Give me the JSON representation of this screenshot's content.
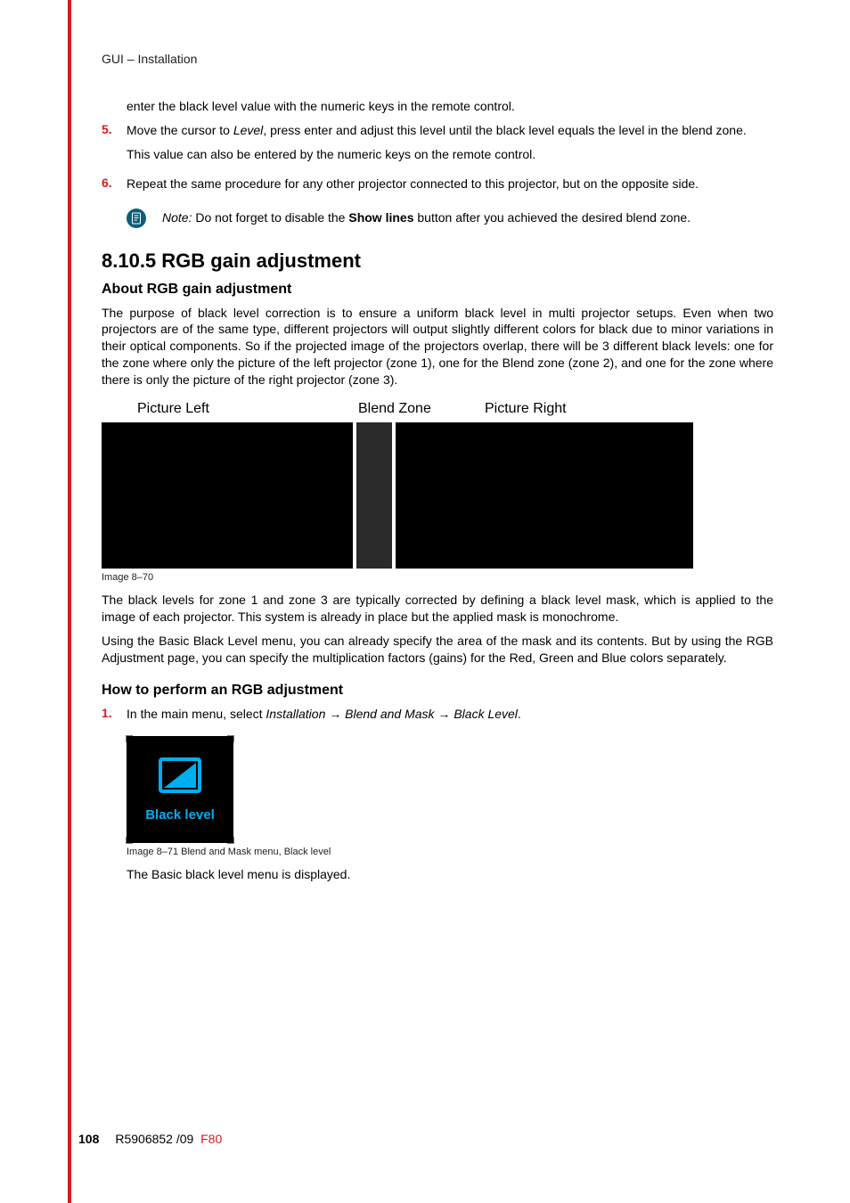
{
  "header": {
    "title": "GUI – Installation"
  },
  "intro_continuation": "enter the black level value with the numeric keys in the remote control.",
  "steps_top": [
    {
      "num": "5.",
      "lines": [
        {
          "parts": [
            {
              "t": "Move the cursor to "
            },
            {
              "t": "Level",
              "italic": true
            },
            {
              "t": ", press enter and adjust this level until the black level equals the level in the blend zone."
            }
          ]
        },
        {
          "parts": [
            {
              "t": "This value can also be entered by the numeric keys on the remote control."
            }
          ]
        }
      ]
    },
    {
      "num": "6.",
      "lines": [
        {
          "parts": [
            {
              "t": "Repeat the same procedure for any other projector connected to this projector, but on the opposite side."
            }
          ]
        }
      ]
    }
  ],
  "note": {
    "prefix": "Note:",
    "before": " Do not forget to disable the ",
    "bold": "Show lines",
    "after": " button after you achieved the desired blend zone."
  },
  "section": {
    "num_title": "8.10.5 RGB gain adjustment",
    "sub1": "About RGB gain adjustment",
    "para1": "The purpose of black level correction is to ensure a uniform black level in multi projector setups. Even when two projectors are of the same type, different projectors will output slightly different colors for black due to minor variations in their optical components. So if the projected image of the projectors overlap, there will be 3 different black levels: one for the zone where only the picture of the left projector (zone 1), one for the Blend zone (zone 2), and one for the zone where there is only the picture of the right projector (zone 3).",
    "fig870": {
      "labels": [
        "Picture Left",
        "Blend Zone",
        "Picture Right"
      ],
      "caption": "Image 8–70",
      "colors": {
        "left": "#000000",
        "blend": "#2a2a2a",
        "right": "#000000"
      }
    },
    "para2": "The black levels for zone 1 and zone 3 are typically corrected by defining a black level mask, which is applied to the image of each projector. This system is already in place but the applied mask is monochrome.",
    "para3": "Using the Basic Black Level menu, you can already specify the area of the mask and its contents. But by using the RGB Adjustment page, you can specify the multiplication factors (gains) for the Red, Green and Blue colors separately.",
    "sub2": "How to perform an RGB adjustment",
    "step1": {
      "num": "1.",
      "parts": [
        {
          "t": "In the main menu, select "
        },
        {
          "t": "Installation",
          "italic": true
        },
        {
          "t": " → "
        },
        {
          "t": "Blend and Mask",
          "italic": true
        },
        {
          "t": " → "
        },
        {
          "t": "Black Level",
          "italic": true
        },
        {
          "t": "."
        }
      ]
    },
    "menu_icon": {
      "label": "Black level",
      "accent": "#00aeef",
      "bg": "#000000"
    },
    "caption871": "Image 8–71  Blend and Mask menu, Black level",
    "after_icon": "The Basic black level menu is displayed."
  },
  "footer": {
    "page": "108",
    "doc": "R5906852 /09",
    "prod": "F80"
  }
}
